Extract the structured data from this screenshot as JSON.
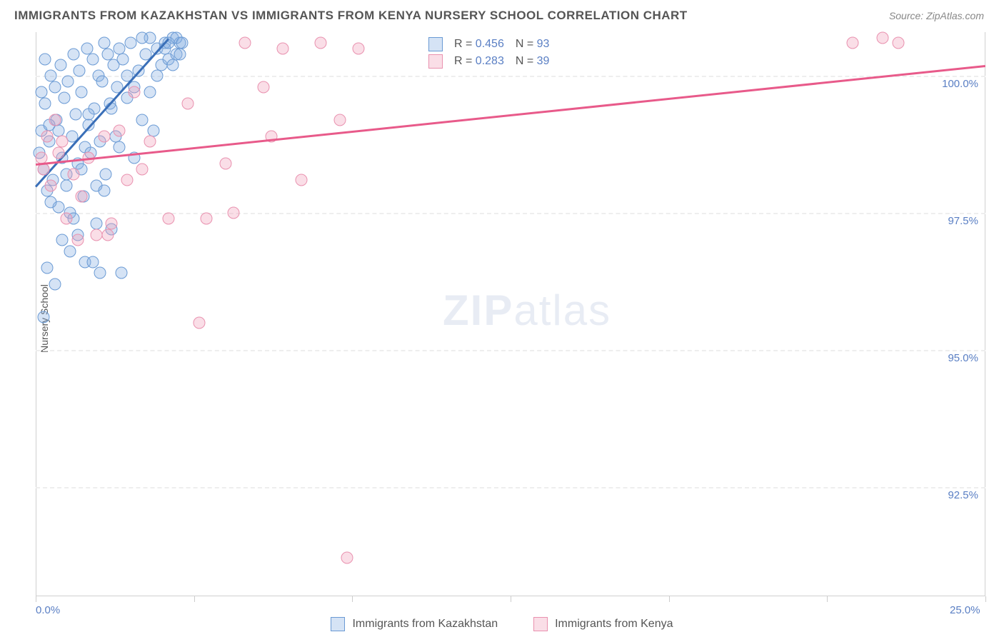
{
  "title": "IMMIGRANTS FROM KAZAKHSTAN VS IMMIGRANTS FROM KENYA NURSERY SCHOOL CORRELATION CHART",
  "source": "Source: ZipAtlas.com",
  "ylabel": "Nursery School",
  "watermark_zip": "ZIP",
  "watermark_atlas": "atlas",
  "chart": {
    "type": "scatter",
    "xlim": [
      0,
      25
    ],
    "ylim": [
      90.5,
      100.8
    ],
    "xtick_labels": [
      "0.0%",
      "25.0%"
    ],
    "xtick_positions": [
      0,
      25
    ],
    "xtick_marks": [
      0,
      4.17,
      8.33,
      12.5,
      16.67,
      20.83,
      25
    ],
    "ytick_labels": [
      "92.5%",
      "95.0%",
      "97.5%",
      "100.0%"
    ],
    "ytick_positions": [
      92.5,
      95.0,
      97.5,
      100.0
    ],
    "grid_color": "#eeeeee",
    "background_color": "#ffffff",
    "axis_color": "#d0d0d0"
  },
  "series": [
    {
      "name": "Immigrants from Kazakhstan",
      "fill": "rgba(135,175,225,0.35)",
      "stroke": "#6a9ad4",
      "trend_color": "#3a6fb8",
      "trend": {
        "x1": 0,
        "y1": 98.0,
        "x2": 3.5,
        "y2": 100.7
      },
      "R": "0.456",
      "N": "93",
      "points": [
        [
          0.1,
          98.6
        ],
        [
          0.15,
          99.0
        ],
        [
          0.2,
          98.3
        ],
        [
          0.25,
          99.5
        ],
        [
          0.3,
          97.9
        ],
        [
          0.35,
          98.8
        ],
        [
          0.4,
          100.0
        ],
        [
          0.45,
          98.1
        ],
        [
          0.5,
          99.8
        ],
        [
          0.55,
          99.2
        ],
        [
          0.6,
          97.6
        ],
        [
          0.65,
          100.2
        ],
        [
          0.7,
          98.5
        ],
        [
          0.75,
          99.6
        ],
        [
          0.8,
          98.0
        ],
        [
          0.85,
          99.9
        ],
        [
          0.9,
          97.5
        ],
        [
          0.95,
          98.9
        ],
        [
          1.0,
          100.4
        ],
        [
          1.05,
          99.3
        ],
        [
          1.1,
          98.4
        ],
        [
          1.15,
          100.1
        ],
        [
          1.2,
          99.7
        ],
        [
          1.25,
          97.8
        ],
        [
          1.3,
          98.7
        ],
        [
          1.35,
          100.5
        ],
        [
          1.4,
          99.1
        ],
        [
          1.45,
          98.6
        ],
        [
          1.5,
          100.3
        ],
        [
          1.55,
          99.4
        ],
        [
          1.6,
          97.3
        ],
        [
          1.65,
          100.0
        ],
        [
          1.7,
          98.8
        ],
        [
          1.75,
          99.9
        ],
        [
          1.8,
          100.6
        ],
        [
          1.85,
          98.2
        ],
        [
          1.9,
          100.4
        ],
        [
          1.95,
          99.5
        ],
        [
          2.0,
          97.2
        ],
        [
          2.05,
          100.2
        ],
        [
          2.1,
          98.9
        ],
        [
          2.15,
          99.8
        ],
        [
          2.2,
          100.5
        ],
        [
          2.25,
          96.4
        ],
        [
          2.3,
          100.3
        ],
        [
          2.4,
          99.6
        ],
        [
          2.5,
          100.6
        ],
        [
          2.6,
          98.5
        ],
        [
          2.7,
          100.1
        ],
        [
          2.8,
          99.2
        ],
        [
          2.9,
          100.4
        ],
        [
          3.0,
          100.7
        ],
        [
          3.1,
          99.0
        ],
        [
          3.2,
          100.5
        ],
        [
          3.3,
          100.2
        ],
        [
          3.4,
          100.6
        ],
        [
          3.5,
          100.3
        ],
        [
          3.6,
          100.7
        ],
        [
          3.7,
          100.4
        ],
        [
          3.8,
          100.6
        ],
        [
          0.3,
          96.5
        ],
        [
          0.5,
          96.2
        ],
        [
          0.7,
          97.0
        ],
        [
          0.9,
          96.8
        ],
        [
          1.1,
          97.1
        ],
        [
          0.2,
          95.6
        ],
        [
          1.3,
          96.6
        ],
        [
          1.5,
          96.6
        ],
        [
          1.7,
          96.4
        ],
        [
          0.4,
          97.7
        ],
        [
          0.6,
          99.0
        ],
        [
          0.8,
          98.2
        ],
        [
          1.0,
          97.4
        ],
        [
          1.2,
          98.3
        ],
        [
          1.4,
          99.3
        ],
        [
          1.6,
          98.0
        ],
        [
          1.8,
          97.9
        ],
        [
          2.0,
          99.4
        ],
        [
          2.2,
          98.7
        ],
        [
          2.4,
          100.0
        ],
        [
          2.6,
          99.8
        ],
        [
          2.8,
          100.7
        ],
        [
          3.0,
          99.7
        ],
        [
          3.2,
          100.0
        ],
        [
          3.4,
          100.5
        ],
        [
          3.5,
          100.6
        ],
        [
          3.6,
          100.2
        ],
        [
          3.7,
          100.7
        ],
        [
          3.8,
          100.4
        ],
        [
          3.85,
          100.6
        ],
        [
          0.15,
          99.7
        ],
        [
          0.25,
          100.3
        ],
        [
          0.35,
          99.1
        ]
      ]
    },
    {
      "name": "Immigrants from Kenya",
      "fill": "rgba(240,160,185,0.35)",
      "stroke": "#e991af",
      "trend_color": "#e85a8a",
      "trend": {
        "x1": 0,
        "y1": 98.4,
        "x2": 25,
        "y2": 100.2
      },
      "R": "0.283",
      "N": "39",
      "points": [
        [
          0.2,
          98.3
        ],
        [
          0.4,
          98.0
        ],
        [
          0.6,
          98.6
        ],
        [
          0.8,
          97.4
        ],
        [
          1.0,
          98.2
        ],
        [
          1.2,
          97.8
        ],
        [
          1.4,
          98.5
        ],
        [
          1.6,
          97.1
        ],
        [
          1.8,
          98.9
        ],
        [
          2.0,
          97.3
        ],
        [
          2.2,
          99.0
        ],
        [
          2.4,
          98.1
        ],
        [
          2.6,
          99.7
        ],
        [
          2.8,
          98.3
        ],
        [
          3.0,
          98.8
        ],
        [
          3.5,
          97.4
        ],
        [
          4.0,
          99.5
        ],
        [
          4.5,
          97.4
        ],
        [
          5.0,
          98.4
        ],
        [
          5.5,
          100.6
        ],
        [
          6.0,
          99.8
        ],
        [
          6.2,
          98.9
        ],
        [
          6.5,
          100.5
        ],
        [
          7.0,
          98.1
        ],
        [
          7.5,
          100.6
        ],
        [
          8.0,
          99.2
        ],
        [
          8.2,
          91.2
        ],
        [
          8.5,
          100.5
        ],
        [
          4.3,
          95.5
        ],
        [
          5.2,
          97.5
        ],
        [
          1.1,
          97.0
        ],
        [
          1.9,
          97.1
        ],
        [
          0.3,
          98.9
        ],
        [
          0.5,
          99.2
        ],
        [
          21.5,
          100.6
        ],
        [
          22.3,
          100.7
        ],
        [
          22.7,
          100.6
        ],
        [
          0.15,
          98.5
        ],
        [
          0.7,
          98.8
        ]
      ]
    }
  ],
  "legend_labels": {
    "R_label": "R =",
    "N_label": "N ="
  }
}
